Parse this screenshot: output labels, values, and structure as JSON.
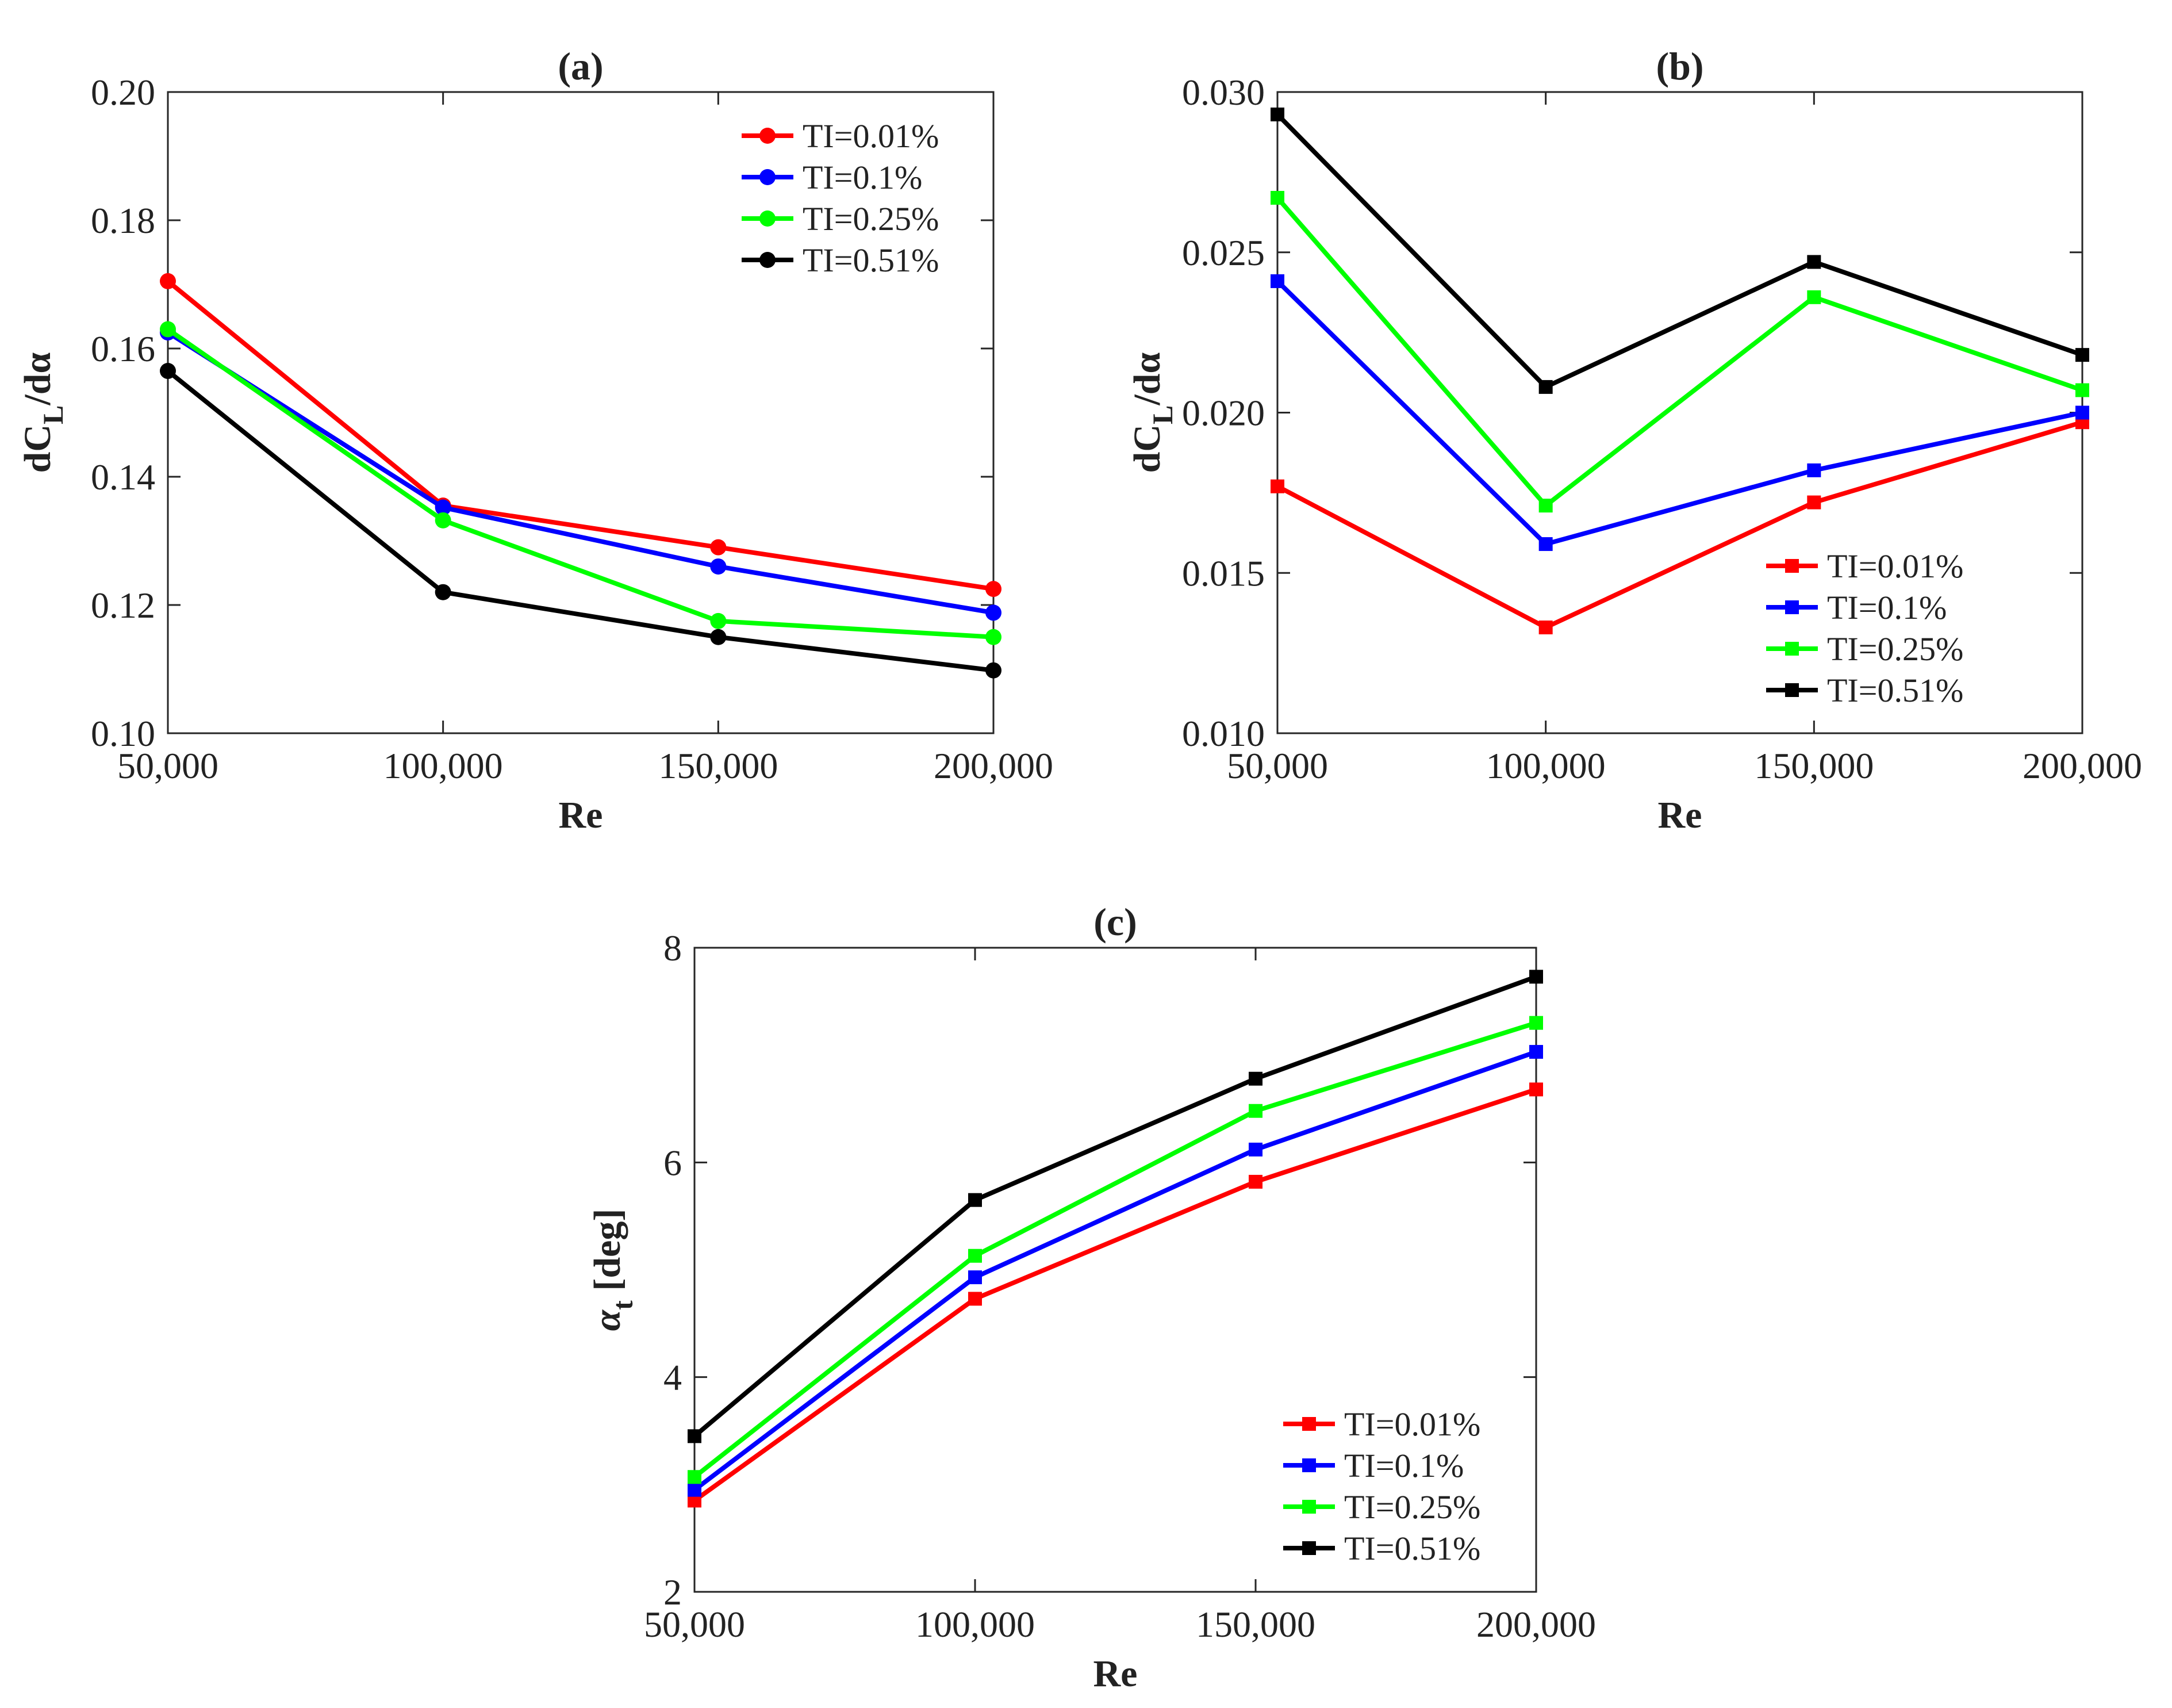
{
  "chart_data": [
    {
      "id": "a",
      "type": "line",
      "title": "(a)",
      "xlabel": "Re",
      "ylabel": {
        "main": "dC",
        "sub": "L",
        "rest": "/dα"
      },
      "x": [
        50000,
        100000,
        150000,
        200000
      ],
      "xtick_labels": [
        "50,000",
        "100,000",
        "150,000",
        "200,000"
      ],
      "xlim": [
        50000,
        200000
      ],
      "ylim": [
        0.1,
        0.2
      ],
      "yticks": [
        0.1,
        0.12,
        0.14,
        0.16,
        0.18,
        0.2
      ],
      "ytick_labels": [
        "0.10",
        "0.12",
        "0.14",
        "0.16",
        "0.18",
        "0.20"
      ],
      "marker": "circle",
      "legend_position": "top-right",
      "series": [
        {
          "name": "TI=0.01%",
          "color": "#ff0000",
          "values": [
            0.1705,
            0.1355,
            0.129,
            0.1225
          ]
        },
        {
          "name": "TI=0.1%",
          "color": "#0000ff",
          "values": [
            0.1625,
            0.1352,
            0.126,
            0.1188
          ]
        },
        {
          "name": "TI=0.25%",
          "color": "#00ff00",
          "values": [
            0.163,
            0.1332,
            0.1175,
            0.115
          ]
        },
        {
          "name": "TI=0.51%",
          "color": "#000000",
          "values": [
            0.1565,
            0.122,
            0.115,
            0.1098
          ]
        }
      ]
    },
    {
      "id": "b",
      "type": "line",
      "title": "(b)",
      "xlabel": "Re",
      "ylabel": {
        "main": "dC",
        "sub": "L",
        "rest": "/dα"
      },
      "x": [
        50000,
        100000,
        150000,
        200000
      ],
      "xtick_labels": [
        "50,000",
        "100,000",
        "150,000",
        "200,000"
      ],
      "xlim": [
        50000,
        200000
      ],
      "ylim": [
        0.01,
        0.03
      ],
      "yticks": [
        0.01,
        0.015,
        0.02,
        0.025,
        0.03
      ],
      "ytick_labels": [
        "0.010",
        "0.015",
        "0.020",
        "0.025",
        "0.030"
      ],
      "marker": "square",
      "legend_position": "bottom-right",
      "series": [
        {
          "name": "TI=0.01%",
          "color": "#ff0000",
          "values": [
            0.0177,
            0.0133,
            0.0172,
            0.0197
          ]
        },
        {
          "name": "TI=0.1%",
          "color": "#0000ff",
          "values": [
            0.0241,
            0.0159,
            0.0182,
            0.02
          ]
        },
        {
          "name": "TI=0.25%",
          "color": "#00ff00",
          "values": [
            0.0267,
            0.0171,
            0.0236,
            0.0207
          ]
        },
        {
          "name": "TI=0.51%",
          "color": "#000000",
          "values": [
            0.0293,
            0.0208,
            0.0247,
            0.0218
          ]
        }
      ]
    },
    {
      "id": "c",
      "type": "line",
      "title": "(c)",
      "xlabel": "Re",
      "ylabel": {
        "main": "α",
        "sub": "t",
        "rest": " [deg]"
      },
      "x": [
        50000,
        100000,
        150000,
        200000
      ],
      "xtick_labels": [
        "50,000",
        "100,000",
        "150,000",
        "200,000"
      ],
      "xlim": [
        50000,
        200000
      ],
      "ylim": [
        2,
        8
      ],
      "yticks": [
        2,
        4,
        6,
        8
      ],
      "ytick_labels": [
        "2",
        "4",
        "6",
        "8"
      ],
      "marker": "square",
      "legend_position": "bottom-right",
      "series": [
        {
          "name": "TI=0.01%",
          "color": "#ff0000",
          "values": [
            2.85,
            4.73,
            5.82,
            6.68
          ]
        },
        {
          "name": "TI=0.1%",
          "color": "#0000ff",
          "values": [
            2.95,
            4.93,
            6.12,
            7.03
          ]
        },
        {
          "name": "TI=0.25%",
          "color": "#00ff00",
          "values": [
            3.07,
            5.13,
            6.48,
            7.3
          ]
        },
        {
          "name": "TI=0.51%",
          "color": "#000000",
          "values": [
            3.45,
            5.65,
            6.78,
            7.73
          ]
        }
      ]
    }
  ]
}
